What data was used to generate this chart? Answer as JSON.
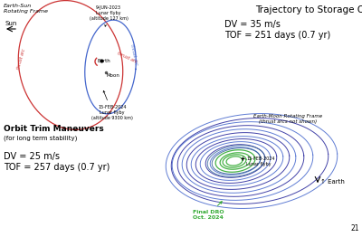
{
  "title": "Trajectory to Storage Orbit",
  "dv_traj": "DV = 35 m/s",
  "tof_traj": "TOF = 251 days (0.7 yr)",
  "dv_trim": "DV = 25 m/s",
  "tof_trim": "TOF = 257 days (0.7 yr)",
  "trim_title": "Orbit Trim Maneuvers",
  "trim_sub": "(for long term stability)",
  "frame_label_top": "Earth-Sun\nRotating Frame",
  "frame_label_bottom": "Earth-Moon Rotating Frame\n(thrust arcs not shown)",
  "sun_label": "Sun",
  "earth_label_top": "Earth",
  "moon_label": "Moon",
  "earth_label_bottom": "↑ Earth",
  "lunar_flyby_top": "9-JUN-2023\nLunar flyby\n(altitude 127 km)",
  "lunar_flyby_bot_left": "15-FEB-2024\nLunar flyby\n(altitude 9300 km)",
  "lunar_flyby_bot_right": "15-FEB-2024\nLunar flyby",
  "final_dro": "Final DRO\nOct. 2024",
  "thrust_arc_red": "thrust arc",
  "thrust_arc_blue": "thrust arc",
  "page_num": "21",
  "bg_color": "#ffffff",
  "red_color": "#cc3333",
  "blue_color": "#4466cc",
  "dark_blue": "#222299",
  "green_color": "#33aa33",
  "mid_blue": "#3355bb"
}
